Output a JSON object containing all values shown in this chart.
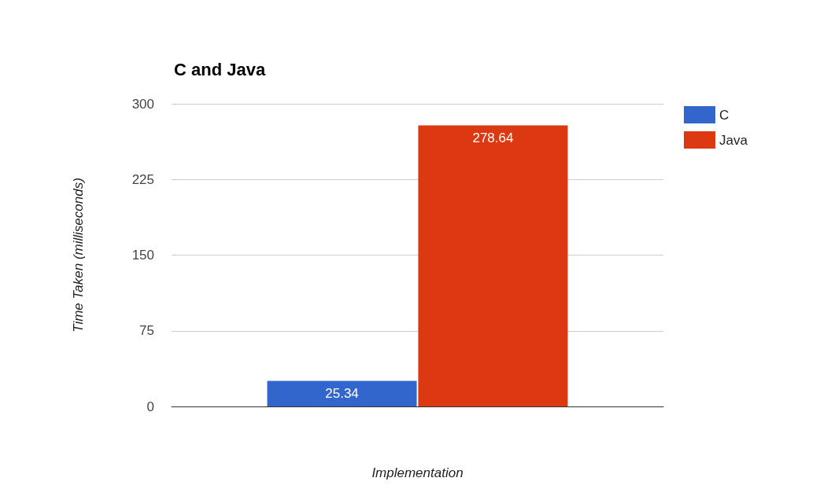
{
  "chart_data": {
    "type": "bar",
    "title": "C and Java",
    "xlabel": "Implementation",
    "ylabel": "Time Taken (milliseconds)",
    "categories": [
      null
    ],
    "series": [
      {
        "name": "C",
        "color": "#3366cc",
        "values": [
          25.34
        ]
      },
      {
        "name": "Java",
        "color": "#dc3912",
        "values": [
          278.64
        ]
      }
    ],
    "ylim": [
      0,
      300
    ],
    "yticks": [
      0,
      75,
      150,
      225,
      300
    ],
    "grid": "y",
    "legend": "top right",
    "data_labels": true
  }
}
